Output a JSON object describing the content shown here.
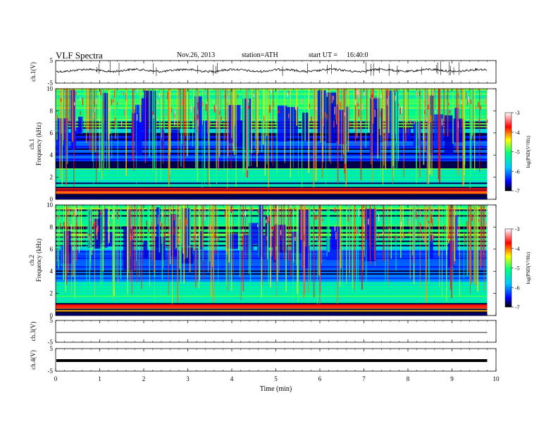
{
  "header": {
    "title": "VLF Spectra",
    "date": "Nov.26, 2013",
    "station": "station=ATH",
    "start_prefix": "start UT =",
    "start_time": "16:40:0"
  },
  "chart_data": [
    {
      "type": "line",
      "id": "ch1_waveform",
      "ylabel": "ch.1(V)",
      "ylim": [
        -5,
        5
      ],
      "ytick_labels": [
        "5",
        "-5"
      ],
      "xlim": [
        0,
        10
      ],
      "x_extent": [
        0,
        9.8
      ],
      "series": [
        {
          "values_description_level": 2
        }
      ]
    },
    {
      "type": "heatmap",
      "id": "ch1_spectrogram",
      "ylabel": "Frequency (kHz)",
      "channel_label": "ch.1",
      "ylim": [
        0,
        10
      ],
      "ytick_labels": [
        "0",
        "2",
        "4",
        "6",
        "8",
        "10"
      ],
      "xlim": [
        0,
        10
      ],
      "x_extent": [
        0,
        9.8
      ],
      "colorbar": {
        "label": "log(PSD(V²/Hz)",
        "range": [
          -7,
          -3
        ],
        "tick_labels": [
          "-3",
          "-4",
          "-5",
          "-6",
          "-7"
        ]
      }
    },
    {
      "type": "heatmap",
      "id": "ch2_spectrogram",
      "ylabel": "Frequency (kHz)",
      "channel_label": "ch.2",
      "ylim": [
        0,
        10
      ],
      "ytick_labels": [
        "0",
        "2",
        "4",
        "6",
        "8",
        "10"
      ],
      "xlim": [
        0,
        10
      ],
      "x_extent": [
        0,
        9.8
      ],
      "colorbar": {
        "label": "log(PSD(V²/Hz)",
        "range": [
          -7,
          -3
        ],
        "tick_labels": [
          "-3",
          "-4",
          "-5",
          "-6",
          "-7"
        ]
      }
    },
    {
      "type": "line",
      "id": "ch3_waveform",
      "ylabel": "ch.3(V)",
      "ylim": [
        -5,
        5
      ],
      "ytick_labels": [
        "5",
        "-5"
      ],
      "xlim": [
        0,
        10
      ],
      "x_extent": [
        0,
        9.8
      ],
      "level": -0.5
    },
    {
      "type": "line",
      "id": "ch4_waveform",
      "ylabel": "ch.4(V)",
      "ylim": [
        -5,
        5
      ],
      "ytick_labels": [
        "5",
        "-5"
      ],
      "xlim": [
        0,
        10
      ],
      "x_extent": [
        0,
        9.8
      ],
      "level": -0.3,
      "xlabel": "Time (min)",
      "xtick_labels": [
        "0",
        "1",
        "2",
        "3",
        "4",
        "5",
        "6",
        "7",
        "8",
        "9",
        "10"
      ]
    }
  ],
  "colors": {
    "colormap": [
      "#000000",
      "#0000ff",
      "#00c8ff",
      "#00ff80",
      "#ffff00",
      "#ff0000",
      "#ffffff"
    ]
  }
}
